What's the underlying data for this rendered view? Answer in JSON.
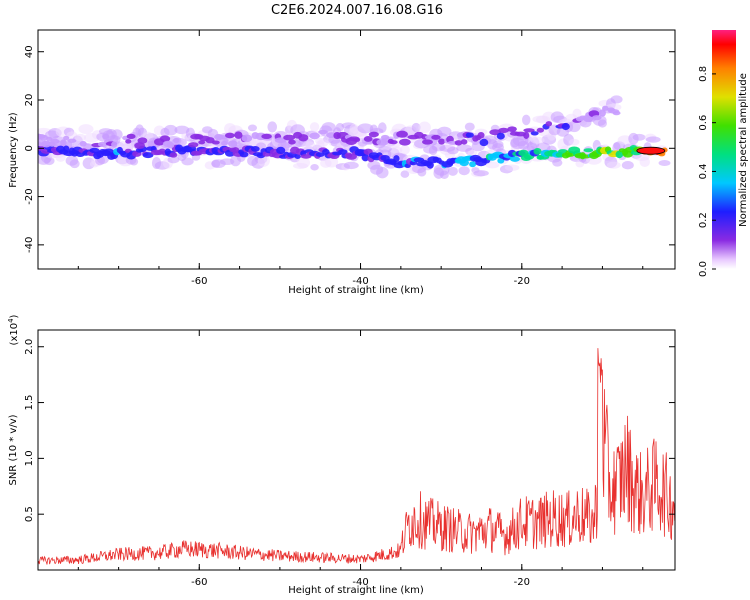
{
  "title": "C2E6.2024.007.16.08.G16",
  "chart_data": [
    {
      "type": "heatmap",
      "xlabel": "Height of straight line (km)",
      "ylabel": "Frequency (Hz)",
      "xlim": [
        -80,
        -1
      ],
      "ylim": [
        -50,
        49
      ],
      "xticks": [
        -60,
        -40,
        -20
      ],
      "yticks": [
        -40,
        -20,
        0,
        20,
        40
      ],
      "colorbar": {
        "label": "Normalized spectral amplitude",
        "range": [
          0,
          0.98
        ],
        "ticks": [
          0.0,
          0.2,
          0.4,
          0.6,
          0.8
        ]
      },
      "bands": [
        {
          "x": [
            -80,
            -70,
            -60,
            -50,
            -40,
            -35,
            -30,
            -25,
            -20,
            -15,
            -10,
            -5,
            -2
          ],
          "y": [
            -1,
            -2,
            -1,
            -2,
            -2,
            -6,
            -6,
            -5,
            -3,
            -2,
            -2,
            -1,
            -1
          ],
          "amp": [
            0.3,
            0.35,
            0.3,
            0.3,
            0.3,
            0.35,
            0.4,
            0.4,
            0.5,
            0.6,
            0.65,
            0.8,
            0.98
          ]
        },
        {
          "x": [
            -80,
            -60,
            -45,
            -35,
            -25,
            -15,
            -8
          ],
          "y": [
            3,
            3,
            5,
            4,
            4,
            10,
            16
          ],
          "amp": [
            0.15,
            0.2,
            0.2,
            0.2,
            0.25,
            0.25,
            0.15
          ]
        }
      ]
    },
    {
      "type": "line",
      "xlabel": "Height of straight line (km)",
      "ylabel": "SNR (10 * v/v)",
      "scale_note": "(x10",
      "scale_exp": "4",
      "scale_close": ")",
      "xlim": [
        -80,
        -1
      ],
      "ylim": [
        0,
        2.15
      ],
      "xticks": [
        -60,
        -40,
        -20
      ],
      "yticks": [
        0.5,
        1.0,
        1.5,
        2.0
      ],
      "color": "#e8302e",
      "series": [
        {
          "x": [
            -80,
            -75,
            -70,
            -65,
            -62,
            -58,
            -55,
            -50,
            -45,
            -40,
            -37,
            -35,
            -34,
            -33,
            -32,
            -30,
            -28,
            -26,
            -24,
            -22,
            -20,
            -18,
            -16,
            -14,
            -13,
            -12,
            -11,
            -10,
            -9,
            -8,
            -7,
            -6,
            -5,
            -4,
            -3,
            -2,
            -1
          ],
          "values": [
            0.12,
            0.13,
            0.2,
            0.22,
            0.27,
            0.25,
            0.22,
            0.18,
            0.16,
            0.14,
            0.2,
            0.25,
            0.55,
            0.6,
            0.55,
            0.5,
            0.45,
            0.42,
            0.48,
            0.4,
            0.55,
            0.55,
            0.6,
            0.58,
            0.65,
            0.6,
            0.55,
            1.6,
            0.9,
            1.0,
            1.2,
            0.95,
            0.85,
            0.95,
            1.0,
            0.85,
            0.75
          ]
        }
      ]
    }
  ]
}
